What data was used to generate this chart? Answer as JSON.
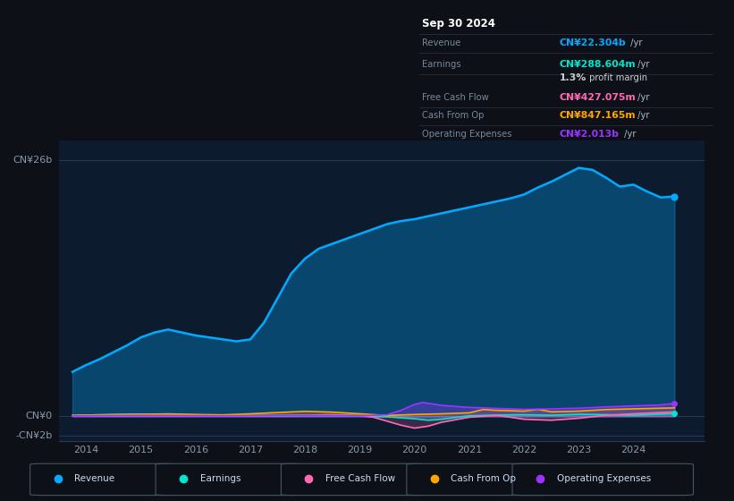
{
  "bg_color": "#0d1117",
  "chart_bg": "#0d1b2e",
  "ylim": [
    -2500000000.0,
    28000000000.0
  ],
  "xlim": [
    2013.5,
    2025.3
  ],
  "xticks": [
    2014,
    2015,
    2016,
    2017,
    2018,
    2019,
    2020,
    2021,
    2022,
    2023,
    2024
  ],
  "ytick_values": [
    -2000000000.0,
    0,
    26000000000.0
  ],
  "ytick_labels": [
    "-CN¥2b",
    "CN¥0",
    "CN¥26b"
  ],
  "revenue_color": "#00aaff",
  "earnings_color": "#00e5cc",
  "fcf_color": "#ff69b4",
  "cashop_color": "#ffa500",
  "opex_color": "#9933ff",
  "legend_items": [
    {
      "label": "Revenue",
      "color": "#00aaff"
    },
    {
      "label": "Earnings",
      "color": "#00e5cc"
    },
    {
      "label": "Free Cash Flow",
      "color": "#ff69b4"
    },
    {
      "label": "Cash From Op",
      "color": "#ffa500"
    },
    {
      "label": "Operating Expenses",
      "color": "#9933ff"
    }
  ],
  "revenue": {
    "x": [
      2013.75,
      2014.0,
      2014.25,
      2014.5,
      2014.75,
      2015.0,
      2015.25,
      2015.5,
      2015.75,
      2016.0,
      2016.25,
      2016.5,
      2016.75,
      2017.0,
      2017.25,
      2017.5,
      2017.75,
      2018.0,
      2018.25,
      2018.5,
      2018.75,
      2019.0,
      2019.25,
      2019.5,
      2019.75,
      2020.0,
      2020.25,
      2020.5,
      2020.75,
      2021.0,
      2021.25,
      2021.5,
      2021.75,
      2022.0,
      2022.25,
      2022.5,
      2022.75,
      2023.0,
      2023.25,
      2023.5,
      2023.75,
      2024.0,
      2024.25,
      2024.5,
      2024.75
    ],
    "y": [
      4500000000.0,
      5200000000.0,
      5800000000.0,
      6500000000.0,
      7200000000.0,
      8000000000.0,
      8500000000.0,
      8800000000.0,
      8500000000.0,
      8200000000.0,
      8000000000.0,
      7800000000.0,
      7600000000.0,
      7800000000.0,
      9500000000.0,
      12000000000.0,
      14500000000.0,
      16000000000.0,
      17000000000.0,
      17500000000.0,
      18000000000.0,
      18500000000.0,
      19000000000.0,
      19500000000.0,
      19800000000.0,
      20000000000.0,
      20300000000.0,
      20600000000.0,
      20900000000.0,
      21200000000.0,
      21500000000.0,
      21800000000.0,
      22100000000.0,
      22500000000.0,
      23200000000.0,
      23800000000.0,
      24500000000.0,
      25200000000.0,
      25000000000.0,
      24200000000.0,
      23300000000.0,
      23500000000.0,
      22800000000.0,
      22200000000.0,
      22304000000.0
    ]
  },
  "earnings": {
    "x": [
      2013.75,
      2014.0,
      2014.5,
      2015.0,
      2015.5,
      2016.0,
      2016.5,
      2017.0,
      2017.5,
      2018.0,
      2018.5,
      2019.0,
      2019.5,
      2020.0,
      2020.25,
      2020.5,
      2021.0,
      2021.5,
      2022.0,
      2022.5,
      2023.0,
      2023.5,
      2024.0,
      2024.5,
      2024.75
    ],
    "y": [
      80000000.0,
      120000000.0,
      180000000.0,
      220000000.0,
      180000000.0,
      140000000.0,
      100000000.0,
      80000000.0,
      60000000.0,
      90000000.0,
      70000000.0,
      40000000.0,
      -50000000.0,
      -250000000.0,
      -400000000.0,
      -300000000.0,
      50000000.0,
      120000000.0,
      150000000.0,
      100000000.0,
      200000000.0,
      160000000.0,
      100000000.0,
      220000000.0,
      288604000.0
    ]
  },
  "fcf": {
    "x": [
      2013.75,
      2014.0,
      2014.5,
      2015.0,
      2015.5,
      2016.0,
      2016.5,
      2017.0,
      2017.5,
      2018.0,
      2018.5,
      2019.0,
      2019.25,
      2019.5,
      2019.75,
      2020.0,
      2020.25,
      2020.5,
      2021.0,
      2021.5,
      2022.0,
      2022.5,
      2023.0,
      2023.5,
      2024.0,
      2024.5,
      2024.75
    ],
    "y": [
      30000000.0,
      60000000.0,
      50000000.0,
      80000000.0,
      70000000.0,
      60000000.0,
      40000000.0,
      70000000.0,
      90000000.0,
      120000000.0,
      150000000.0,
      80000000.0,
      -100000000.0,
      -500000000.0,
      -900000000.0,
      -1200000000.0,
      -1000000000.0,
      -600000000.0,
      -100000000.0,
      100000000.0,
      -300000000.0,
      -400000000.0,
      -200000000.0,
      100000000.0,
      250000000.0,
      380000000.0,
      427075000.0
    ]
  },
  "cashop": {
    "x": [
      2013.75,
      2014.0,
      2014.5,
      2015.0,
      2015.5,
      2016.0,
      2016.5,
      2017.0,
      2017.5,
      2018.0,
      2018.5,
      2019.0,
      2019.5,
      2020.0,
      2020.5,
      2021.0,
      2021.25,
      2021.5,
      2022.0,
      2022.25,
      2022.5,
      2023.0,
      2023.5,
      2024.0,
      2024.5,
      2024.75
    ],
    "y": [
      80000000.0,
      120000000.0,
      160000000.0,
      200000000.0,
      240000000.0,
      180000000.0,
      140000000.0,
      250000000.0,
      380000000.0,
      500000000.0,
      420000000.0,
      250000000.0,
      80000000.0,
      180000000.0,
      250000000.0,
      350000000.0,
      680000000.0,
      600000000.0,
      520000000.0,
      700000000.0,
      450000000.0,
      520000000.0,
      680000000.0,
      750000000.0,
      820000000.0,
      847165000.0
    ]
  },
  "opex": {
    "x": [
      2013.75,
      2014.0,
      2014.5,
      2015.0,
      2015.5,
      2016.0,
      2016.5,
      2017.0,
      2017.5,
      2018.0,
      2018.5,
      2019.0,
      2019.5,
      2019.75,
      2020.0,
      2020.15,
      2020.5,
      2021.0,
      2021.5,
      2022.0,
      2022.5,
      2023.0,
      2023.5,
      2024.0,
      2024.5,
      2024.75
    ],
    "y": [
      30000000.0,
      50000000.0,
      70000000.0,
      90000000.0,
      75000000.0,
      60000000.0,
      45000000.0,
      60000000.0,
      80000000.0,
      80000000.0,
      60000000.0,
      45000000.0,
      150000000.0,
      600000000.0,
      1200000000.0,
      1400000000.0,
      1100000000.0,
      900000000.0,
      800000000.0,
      700000000.0,
      750000000.0,
      820000000.0,
      950000000.0,
      1050000000.0,
      1150000000.0,
      1300000000.0
    ]
  }
}
